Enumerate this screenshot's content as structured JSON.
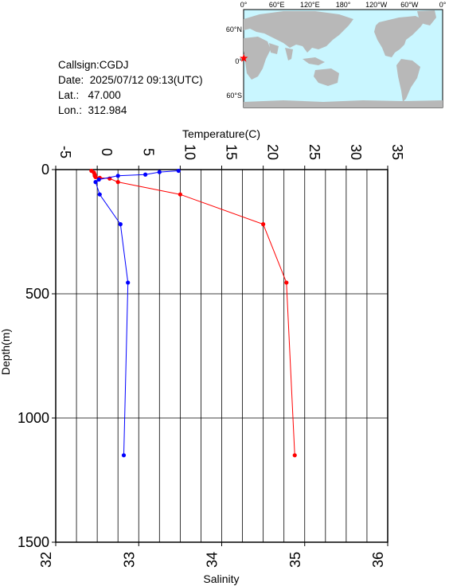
{
  "header": {
    "callsign": "Callsign:CGDJ",
    "date": "Date:  2025/07/12 09:13(UTC)",
    "lat": "Lat.:   47.000",
    "lon": "Lon.:  312.984"
  },
  "map": {
    "top_labels": [
      "0°",
      "60°E",
      "120°E",
      "180°",
      "120°W",
      "60°W",
      "0°"
    ],
    "side_labels": [
      "60°N",
      "0°",
      "60°S"
    ],
    "ocean_color": "#c9f6ff",
    "land_color": "#b8b8b8",
    "marker_color": "#ff0000",
    "marker_icon": "red-star"
  },
  "chart_data": {
    "type": "line",
    "title": "",
    "top_axis": {
      "label": "Temperature(C)",
      "range": [
        -5,
        35
      ],
      "ticks": [
        "-5",
        "0",
        "5",
        "10",
        "15",
        "20",
        "25",
        "30",
        "35"
      ]
    },
    "bottom_axis": {
      "label": "Salinity",
      "range": [
        32,
        36
      ],
      "ticks": [
        "32",
        "33",
        "34",
        "35",
        "36"
      ]
    },
    "y_axis": {
      "label": "Depth(m)",
      "range": [
        0,
        1500
      ],
      "inverted": true,
      "ticks": [
        "0",
        "500",
        "1000",
        "1500"
      ]
    },
    "grid": true,
    "series": [
      {
        "name": "Temperature",
        "axis": "top",
        "color": "#ff0000",
        "points": [
          {
            "value": -0.7,
            "depth": 5
          },
          {
            "value": -0.4,
            "depth": 12
          },
          {
            "value": -0.3,
            "depth": 20
          },
          {
            "value": -0.3,
            "depth": 25
          },
          {
            "value": -0.2,
            "depth": 30
          },
          {
            "value": 0.3,
            "depth": 33
          },
          {
            "value": 1.5,
            "depth": 36
          },
          {
            "value": 2.5,
            "depth": 50
          },
          {
            "value": 10.0,
            "depth": 100
          },
          {
            "value": 20.0,
            "depth": 220
          },
          {
            "value": 22.8,
            "depth": 455
          },
          {
            "value": 23.8,
            "depth": 1150
          }
        ]
      },
      {
        "name": "Salinity",
        "axis": "bottom",
        "color": "#0000ff",
        "points": [
          {
            "value": 33.48,
            "depth": 5
          },
          {
            "value": 33.25,
            "depth": 10
          },
          {
            "value": 33.08,
            "depth": 20
          },
          {
            "value": 32.75,
            "depth": 25
          },
          {
            "value": 32.52,
            "depth": 40
          },
          {
            "value": 32.48,
            "depth": 50
          },
          {
            "value": 32.53,
            "depth": 100
          },
          {
            "value": 32.78,
            "depth": 220
          },
          {
            "value": 32.87,
            "depth": 455
          },
          {
            "value": 32.82,
            "depth": 1150
          }
        ]
      }
    ]
  }
}
